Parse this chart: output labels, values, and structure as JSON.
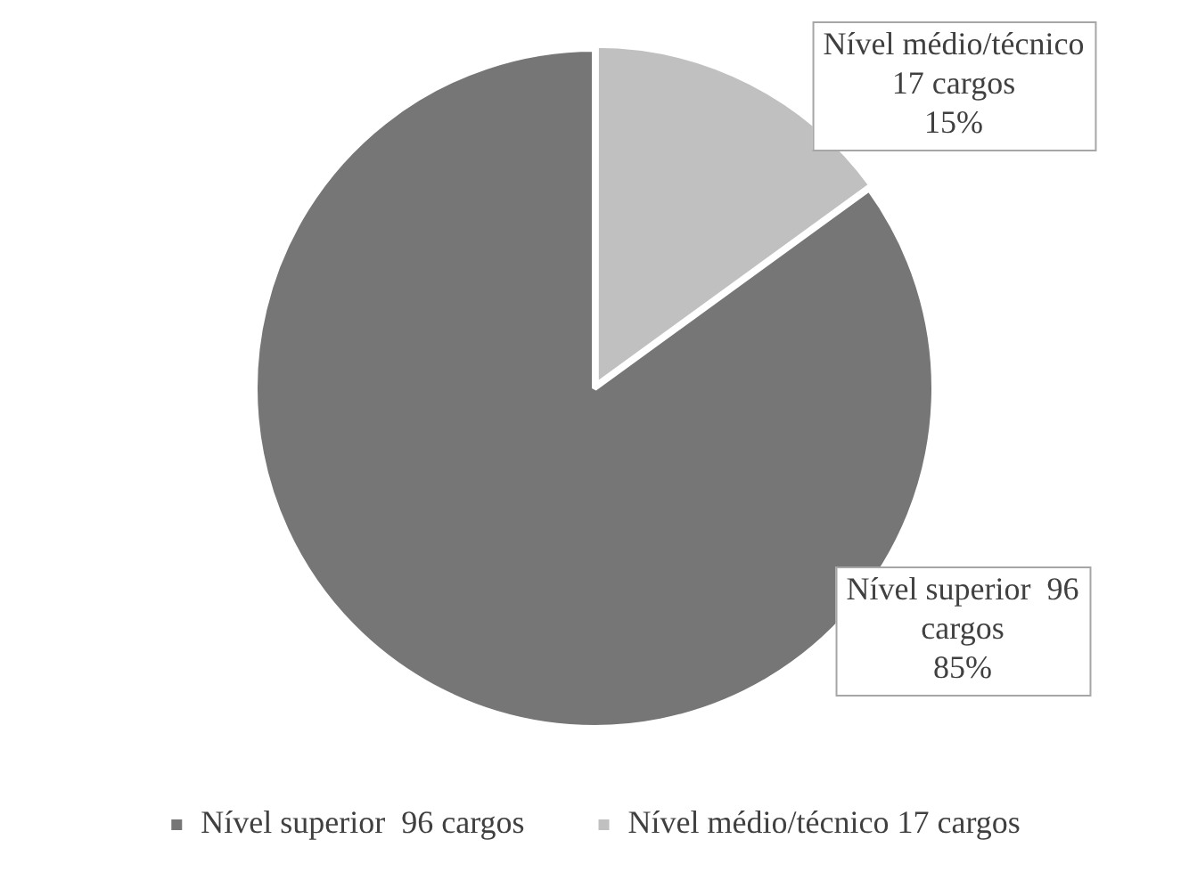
{
  "chart_data": {
    "type": "pie",
    "categories": [
      "Nível superior  96 cargos",
      "Nível médio/técnico 17 cargos"
    ],
    "values": [
      85,
      15
    ],
    "colors": [
      "#767676",
      "#c0c0c0"
    ],
    "value_labels": [
      "Nível superior  96\ncargos\n85%",
      "Nível médio/técnico\n17 cargos\n15%"
    ],
    "legend": "bottom"
  }
}
